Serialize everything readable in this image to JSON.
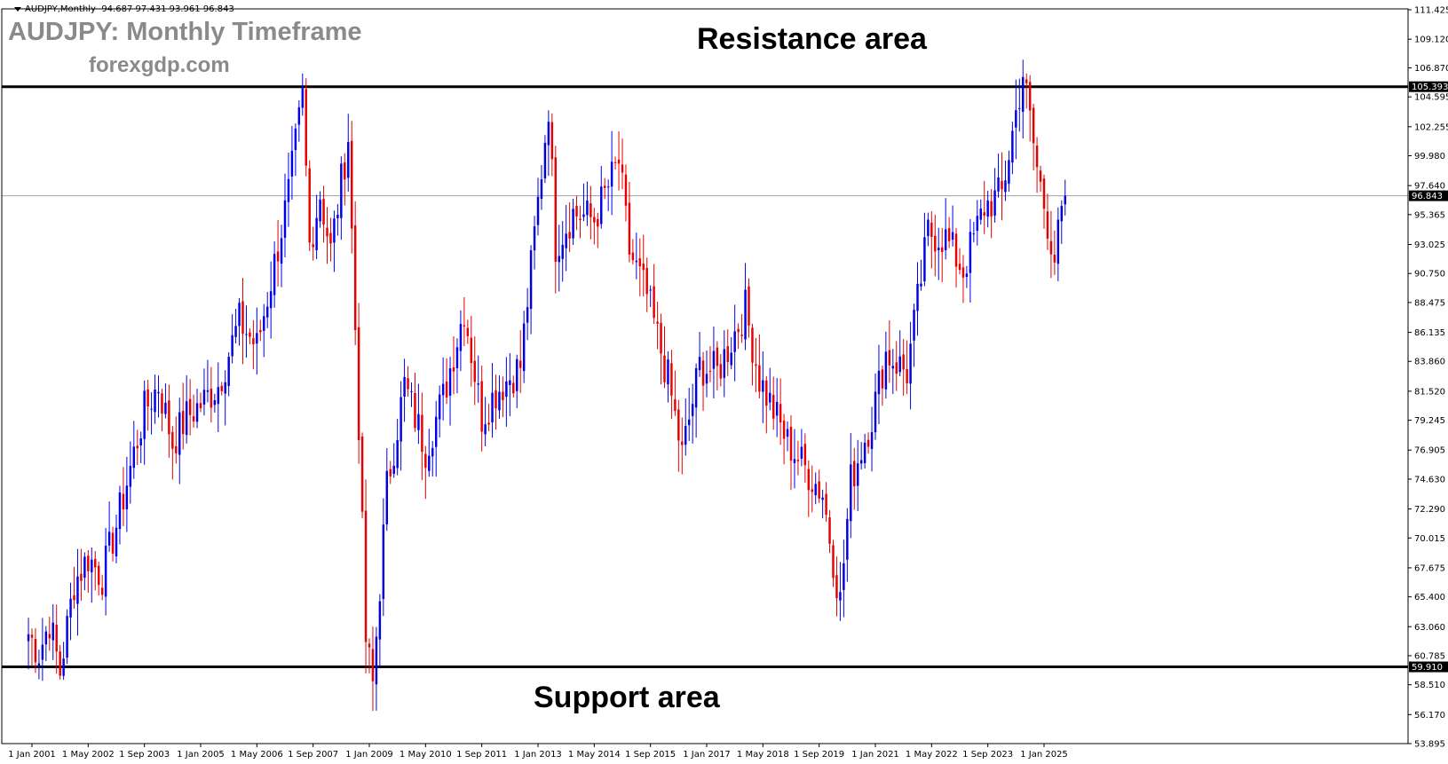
{
  "header": {
    "symbol_label": "AUDJPY,Monthly",
    "ohlc_text": "94.687 97.431 93.961 96.843",
    "title": "AUDJPY: Monthly Timeframe",
    "site": "forexgdp.com"
  },
  "annotations": {
    "resistance_label": "Resistance area",
    "support_label": "Support area"
  },
  "colors": {
    "bull": "#0000e6",
    "bear": "#e60000",
    "level": "#000000",
    "price_line": "#a0a0a0",
    "axis": "#000000"
  },
  "chart_data": {
    "type": "candlestick",
    "symbol": "AUDJPY",
    "timeframe": "Monthly",
    "ylim": [
      53.895,
      111.425
    ],
    "y_ticks": [
      "111.425",
      "109.120",
      "106.870",
      "104.595",
      "102.255",
      "99.980",
      "97.640",
      "95.365",
      "93.025",
      "90.750",
      "88.475",
      "86.135",
      "83.860",
      "81.520",
      "79.245",
      "76.905",
      "74.630",
      "72.290",
      "70.015",
      "67.675",
      "65.400",
      "63.060",
      "60.785",
      "58.510",
      "56.170",
      "53.895"
    ],
    "x_ticks": [
      "1 Jan 2001",
      "1 May 2002",
      "1 Sep 2003",
      "1 Jan 2005",
      "1 May 2006",
      "1 Sep 2007",
      "1 Jan 2009",
      "1 May 2010",
      "1 Sep 2011",
      "1 Jan 2013",
      "1 May 2014",
      "1 Sep 2015",
      "1 Jan 2017",
      "1 May 2018",
      "1 Sep 2019",
      "1 Jan 2021",
      "1 May 2022",
      "1 Sep 2023",
      "1 Jan 2025"
    ],
    "levels": [
      {
        "label": "105.393",
        "value": 105.393
      },
      {
        "label": "96.843",
        "value": 96.843
      },
      {
        "label": "59.910",
        "value": 59.91
      }
    ],
    "current_price": 96.843,
    "price_path": [
      [
        "2000-12",
        62.5
      ],
      [
        "2001-03",
        61.0
      ],
      [
        "2001-06",
        63.5
      ],
      [
        "2001-09",
        59.5
      ],
      [
        "2002-01",
        66.5
      ],
      [
        "2002-05",
        68.5
      ],
      [
        "2002-09",
        67.0
      ],
      [
        "2003-01",
        71.0
      ],
      [
        "2003-05",
        75.5
      ],
      [
        "2003-09",
        80.0
      ],
      [
        "2004-01",
        82.0
      ],
      [
        "2004-05",
        77.5
      ],
      [
        "2004-09",
        79.5
      ],
      [
        "2005-01",
        80.5
      ],
      [
        "2005-06",
        82.0
      ],
      [
        "2005-12",
        87.0
      ],
      [
        "2006-05",
        85.0
      ],
      [
        "2006-10",
        91.5
      ],
      [
        "2007-02",
        97.0
      ],
      [
        "2007-06",
        104.5
      ],
      [
        "2007-08",
        93.0
      ],
      [
        "2007-11",
        97.0
      ],
      [
        "2008-02",
        92.5
      ],
      [
        "2008-07",
        101.5
      ],
      [
        "2008-10",
        79.0
      ],
      [
        "2008-12",
        62.0
      ],
      [
        "2009-02",
        58.5
      ],
      [
        "2009-06",
        74.0
      ],
      [
        "2009-11",
        82.0
      ],
      [
        "2010-05",
        77.0
      ],
      [
        "2010-10",
        81.0
      ],
      [
        "2011-04",
        88.0
      ],
      [
        "2011-09",
        79.5
      ],
      [
        "2012-01",
        81.5
      ],
      [
        "2012-08",
        83.5
      ],
      [
        "2013-04",
        104.0
      ],
      [
        "2013-06",
        93.0
      ],
      [
        "2013-11",
        95.5
      ],
      [
        "2014-05",
        95.0
      ],
      [
        "2014-12",
        99.5
      ],
      [
        "2015-03",
        92.5
      ],
      [
        "2015-08",
        89.0
      ],
      [
        "2016-02",
        82.5
      ],
      [
        "2016-06",
        76.5
      ],
      [
        "2016-11",
        83.5
      ],
      [
        "2017-04",
        83.0
      ],
      [
        "2017-12",
        88.0
      ],
      [
        "2018-04",
        82.5
      ],
      [
        "2018-12",
        77.5
      ],
      [
        "2019-05",
        75.5
      ],
      [
        "2019-10",
        73.5
      ],
      [
        "2020-03",
        65.0
      ],
      [
        "2020-06",
        74.5
      ],
      [
        "2020-12",
        79.5
      ],
      [
        "2021-04",
        84.5
      ],
      [
        "2021-10",
        83.0
      ],
      [
        "2022-04",
        94.0
      ],
      [
        "2022-09",
        93.5
      ],
      [
        "2023-02",
        91.0
      ],
      [
        "2023-08",
        96.0
      ],
      [
        "2024-01",
        97.0
      ],
      [
        "2024-07",
        106.5
      ],
      [
        "2024-11",
        99.0
      ],
      [
        "2025-04",
        92.0
      ],
      [
        "2025-07",
        96.843
      ]
    ]
  }
}
